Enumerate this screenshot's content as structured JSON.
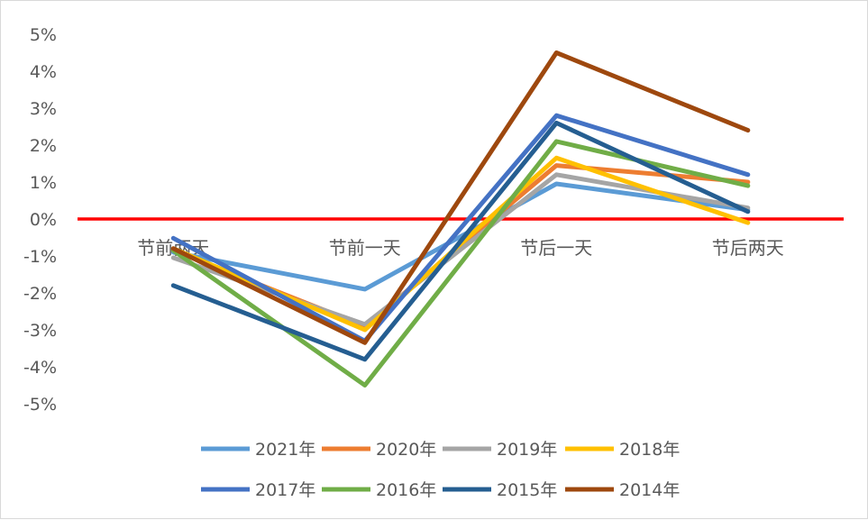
{
  "chart_data": {
    "type": "line",
    "categories": [
      "节前两天",
      "节前一天",
      "节后一天",
      "节后两天"
    ],
    "y_ticks": [
      "5%",
      "4%",
      "3%",
      "2%",
      "1%",
      "0%",
      "-1%",
      "-2%",
      "-3%",
      "-4%",
      "-5%"
    ],
    "ylim": [
      -0.05,
      0.05
    ],
    "grid": false,
    "legend_position": "bottom",
    "reference_line": {
      "value": 0,
      "color": "#ff0000"
    },
    "series": [
      {
        "name": "2021年",
        "color": "#5b9bd5",
        "values": [
          -0.009,
          -0.019,
          0.0095,
          0.0025
        ]
      },
      {
        "name": "2020年",
        "color": "#ed7d31",
        "values": [
          -0.0085,
          -0.029,
          0.0145,
          0.01
        ]
      },
      {
        "name": "2019年",
        "color": "#a5a5a5",
        "values": [
          -0.0105,
          -0.0285,
          0.012,
          0.003
        ]
      },
      {
        "name": "2018年",
        "color": "#ffc000",
        "values": [
          -0.008,
          -0.03,
          0.0165,
          -0.001
        ]
      },
      {
        "name": "2017年",
        "color": "#4472c4",
        "values": [
          -0.0052,
          -0.033,
          0.028,
          0.012
        ]
      },
      {
        "name": "2016年",
        "color": "#70ad47",
        "values": [
          -0.0085,
          -0.045,
          0.021,
          0.009
        ]
      },
      {
        "name": "2015年",
        "color": "#255e91",
        "values": [
          -0.018,
          -0.038,
          0.026,
          0.002
        ]
      },
      {
        "name": "2014年",
        "color": "#9e480e",
        "values": [
          -0.008,
          -0.0335,
          0.045,
          0.024
        ]
      }
    ]
  }
}
